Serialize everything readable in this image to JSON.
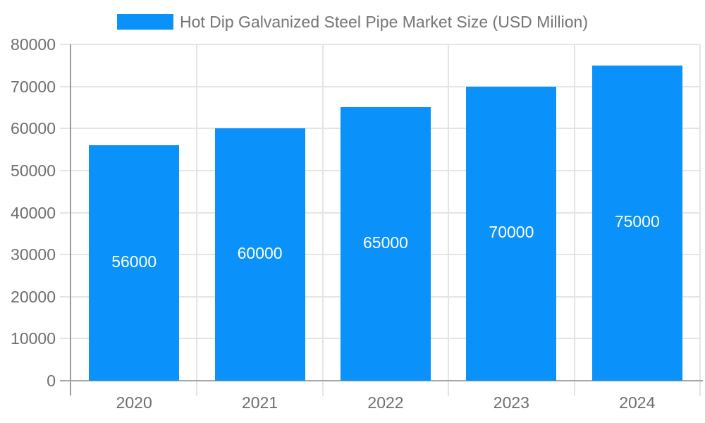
{
  "chart_data": {
    "type": "bar",
    "title": "Hot Dip Galvanized Steel Pipe Market Size (USD Million)",
    "categories": [
      "2020",
      "2021",
      "2022",
      "2023",
      "2024"
    ],
    "values": [
      56000,
      60000,
      65000,
      70000,
      75000
    ],
    "bar_labels": [
      "56000",
      "60000",
      "65000",
      "70000",
      "75000"
    ],
    "xlabel": "",
    "ylabel": "",
    "ylim": [
      0,
      80000
    ],
    "yticks": [
      0,
      10000,
      20000,
      30000,
      40000,
      50000,
      60000,
      70000,
      80000
    ],
    "ytick_labels": [
      "0",
      "10000",
      "20000",
      "30000",
      "40000",
      "50000",
      "60000",
      "70000",
      "80000"
    ],
    "grid": "both",
    "legend_position": "top",
    "series_color": "#0A91FA"
  },
  "colors": {
    "bar": "#0A91FA",
    "legend_text": "#757575",
    "axis_text": "#6E6E6E",
    "bar_label_text": "#FFFFFF",
    "gridline": "#E4E4E4",
    "y_axis_line": "#9A9A9A",
    "x_axis_line": "#A5A5A5",
    "background": "#FFFFFF"
  }
}
